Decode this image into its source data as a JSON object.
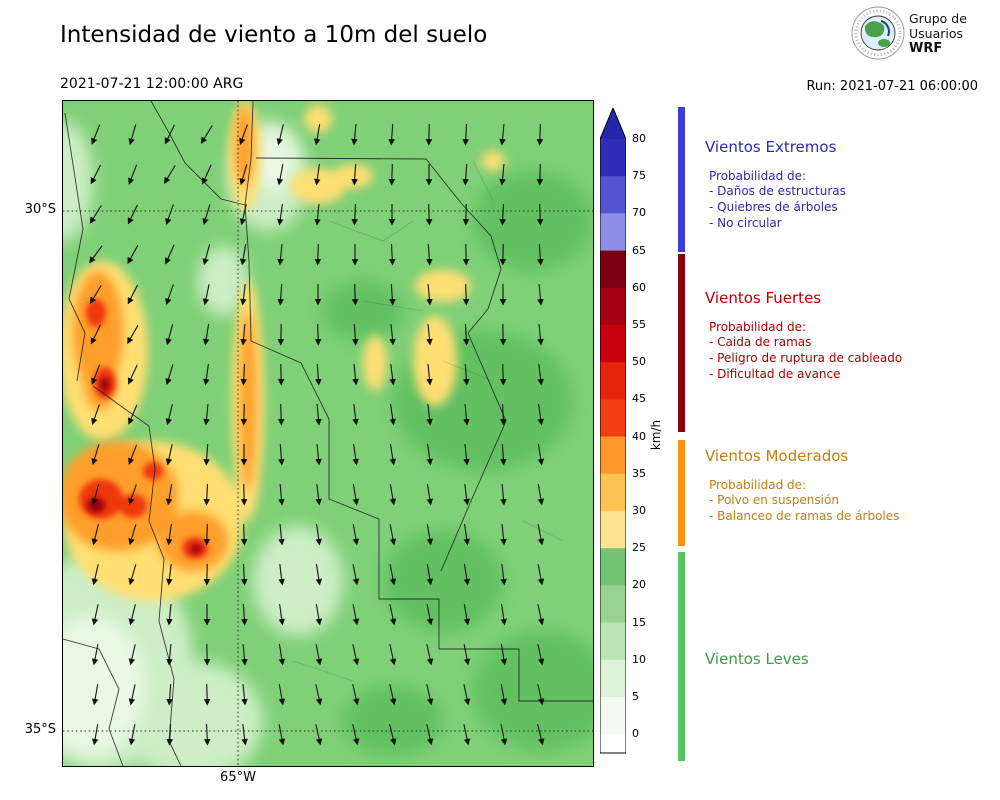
{
  "header": {
    "title": "Intensidad de viento a 10m del suelo",
    "valid_time": "2021-07-21 12:00:00 ARG",
    "run_label": "Run: 2021-07-21 06:00:00",
    "logo_text": [
      "Grupo de",
      "Usuarios",
      "WRF"
    ]
  },
  "map": {
    "lat_ticks": [
      "30°S",
      "35°S"
    ],
    "lon_tick": "65°W"
  },
  "colorbar": {
    "unit": "km/h",
    "ticks": [
      "80",
      "75",
      "70",
      "65",
      "60",
      "55",
      "50",
      "45",
      "40",
      "35",
      "30",
      "25",
      "20",
      "15",
      "10",
      "5",
      "0"
    ],
    "segment_colors_top_to_bottom": [
      "#2e2eb8",
      "#5555d4",
      "#8f8fe3",
      "#7a0012",
      "#a50013",
      "#c9000e",
      "#e8220c",
      "#f33b14",
      "#fe9929",
      "#fec44f",
      "#fee391",
      "#74c476",
      "#97d494",
      "#bce4b5",
      "#dff3da",
      "#f4faf1"
    ],
    "over_arrow_color": "#2424ac",
    "under_color": "#ffffff"
  },
  "legend": {
    "categories": [
      {
        "name": "Vientos Extremos",
        "text_color": "#2b2bab",
        "bar_color": "#3d3dd6",
        "prob_label": "Probabilidad de:",
        "items": [
          "- Daños de estructuras",
          "- Quiebres de árboles",
          "- No circular"
        ]
      },
      {
        "name": "Vientos Fuertes",
        "text_color": "#b20000",
        "bar_color": "#8c0010",
        "prob_label": "Probabilidad de:",
        "items": [
          "- Caida de ramas",
          "- Peligro de ruptura de cableado",
          "- Dificultad de avance"
        ]
      },
      {
        "name": "Vientos Moderados",
        "text_color": "#c47e12",
        "bar_color": "#ff9012",
        "prob_label": "Probabilidad de:",
        "items": [
          "- Polvo en suspensión",
          "- Balanceo de ramas de árboles"
        ]
      },
      {
        "name": "Vientos Leves",
        "text_color": "#3f9b45",
        "bar_color": "#57c45f",
        "prob_label": "",
        "items": []
      }
    ]
  },
  "quiver": {
    "color": "#111111",
    "angles_deg_from_north": [
      [
        202,
        196,
        206,
        212,
        200,
        194,
        190,
        186,
        184,
        181,
        183,
        186,
        182
      ],
      [
        207,
        201,
        211,
        204,
        196,
        191,
        188,
        184,
        182,
        180,
        184,
        186,
        181
      ],
      [
        212,
        206,
        199,
        197,
        193,
        188,
        185,
        183,
        180,
        178,
        181,
        183,
        178
      ],
      [
        216,
        209,
        204,
        195,
        190,
        186,
        182,
        180,
        177,
        176,
        179,
        181,
        176
      ],
      [
        211,
        207,
        199,
        192,
        187,
        184,
        180,
        178,
        176,
        175,
        178,
        180,
        175
      ],
      [
        206,
        210,
        195,
        189,
        185,
        181,
        178,
        176,
        174,
        174,
        177,
        179,
        174
      ],
      [
        201,
        205,
        197,
        188,
        183,
        179,
        176,
        174,
        173,
        174,
        176,
        178,
        173
      ],
      [
        199,
        203,
        194,
        186,
        181,
        178,
        175,
        173,
        172,
        173,
        175,
        177,
        172
      ],
      [
        197,
        201,
        192,
        184,
        180,
        176,
        174,
        172,
        171,
        172,
        174,
        176,
        171
      ],
      [
        195,
        199,
        190,
        183,
        179,
        175,
        173,
        171,
        170,
        171,
        173,
        175,
        170
      ],
      [
        194,
        197,
        188,
        182,
        178,
        174,
        172,
        170,
        169,
        170,
        172,
        174,
        169
      ],
      [
        193,
        196,
        187,
        181,
        177,
        173,
        171,
        169,
        169,
        170,
        171,
        173,
        169
      ],
      [
        192,
        194,
        186,
        180,
        176,
        172,
        170,
        169,
        168,
        169,
        170,
        172,
        168
      ],
      [
        191,
        193,
        185,
        179,
        175,
        171,
        169,
        168,
        168,
        168,
        169,
        171,
        168
      ],
      [
        190,
        192,
        184,
        178,
        174,
        170,
        168,
        167,
        167,
        167,
        168,
        170,
        167
      ],
      [
        190,
        191,
        183,
        177,
        173,
        169,
        168,
        167,
        166,
        167,
        168,
        169,
        166
      ]
    ]
  },
  "chart_data": {
    "type": "heatmap",
    "title": "Intensidad de viento a 10m del suelo",
    "valid_time": "2021-07-21 12:00:00 ARG",
    "run_time": "2021-07-21 06:00:00",
    "units": "km/h",
    "colorbar_levels": [
      0,
      5,
      10,
      15,
      20,
      25,
      30,
      35,
      40,
      45,
      50,
      55,
      60,
      65,
      70,
      75,
      80
    ],
    "lat_ticks": [
      "30°S",
      "35°S"
    ],
    "lon_ticks": [
      "65°W"
    ],
    "categories": [
      {
        "name": "Vientos Leves",
        "range_kmh": [
          0,
          25
        ]
      },
      {
        "name": "Vientos Moderados",
        "range_kmh": [
          25,
          40
        ]
      },
      {
        "name": "Vientos Fuertes",
        "range_kmh": [
          40,
          65
        ]
      },
      {
        "name": "Vientos Extremos",
        "range_kmh": [
          65,
          85
        ]
      }
    ],
    "overlay": "wind direction arrows (quiver), predominantly from the north blowing southward"
  }
}
